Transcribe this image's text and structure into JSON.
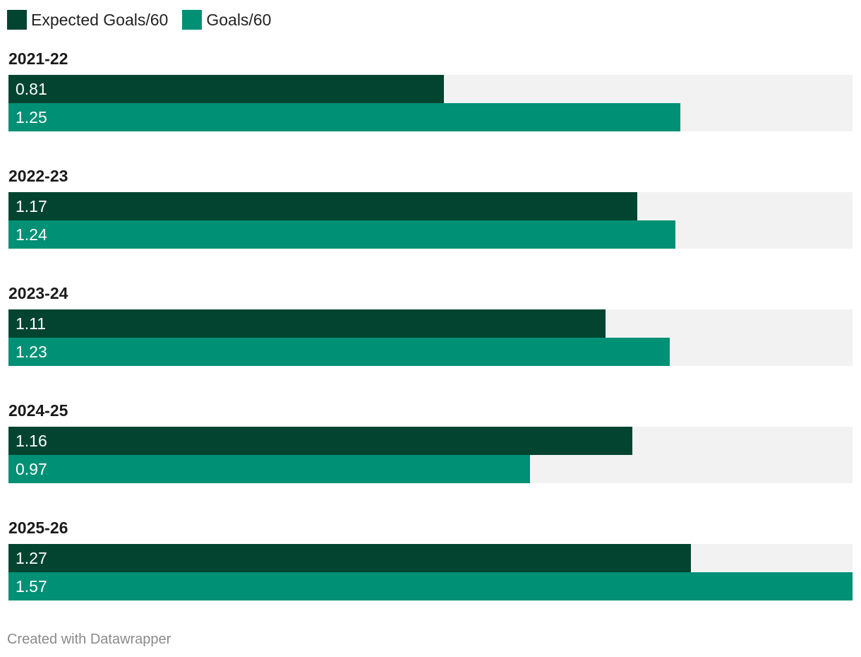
{
  "colors": {
    "expected": "#024430",
    "goals": "#009075",
    "track": "#f2f2f2"
  },
  "legend": [
    {
      "label": "Expected Goals/60",
      "color": "#024430"
    },
    {
      "label": "Goals/60",
      "color": "#009075"
    }
  ],
  "footer": "Created with Datawrapper",
  "chart_data": {
    "type": "bar",
    "orientation": "horizontal",
    "categories": [
      "2021-22",
      "2022-23",
      "2023-24",
      "2024-25",
      "2025-26"
    ],
    "series": [
      {
        "name": "Expected Goals/60",
        "values": [
          0.81,
          1.17,
          1.11,
          1.16,
          1.27
        ],
        "labels": [
          "0.81",
          "1.17",
          "1.11",
          "1.16",
          "1.27"
        ]
      },
      {
        "name": "Goals/60",
        "values": [
          1.25,
          1.24,
          1.23,
          0.97,
          1.57
        ],
        "labels": [
          "1.25",
          "1.24",
          "1.23",
          "0.97",
          "1.57"
        ]
      }
    ],
    "xlim": [
      0,
      1.57
    ],
    "legend_position": "top-left",
    "grid": false
  }
}
